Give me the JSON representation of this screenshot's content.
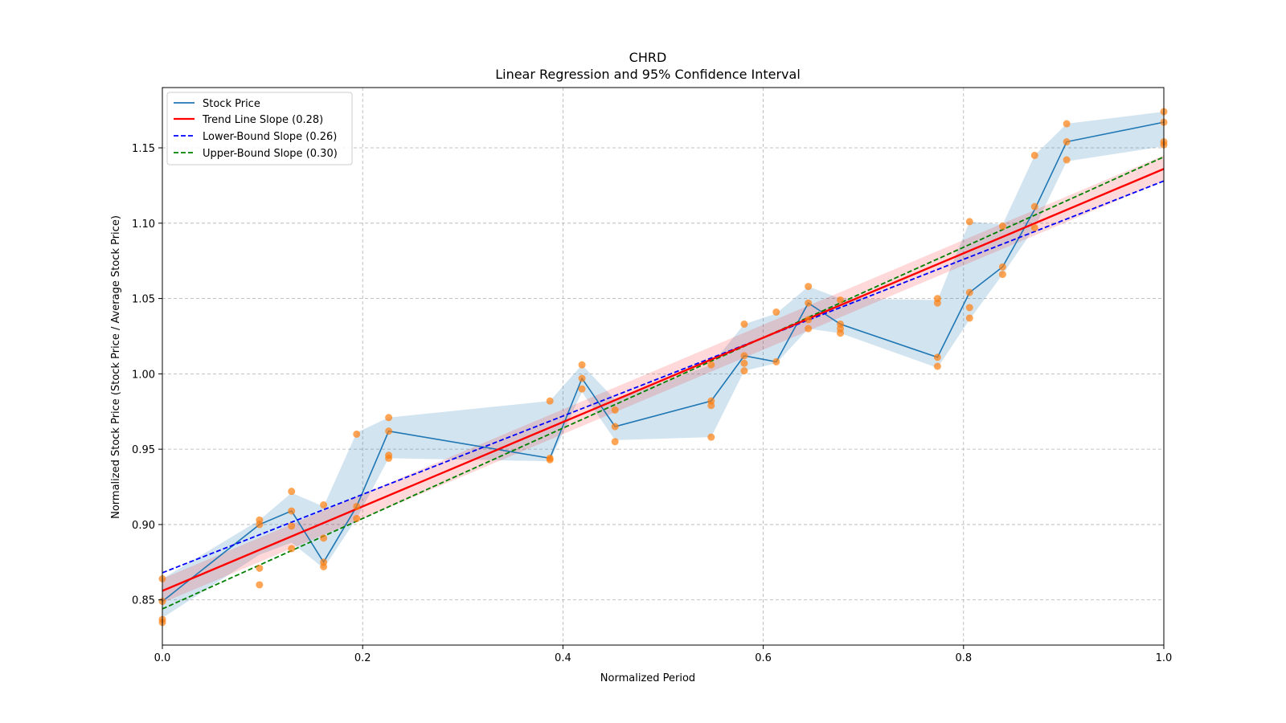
{
  "chart_data": {
    "type": "line",
    "title": "CHRD",
    "subtitle": "Linear Regression and 95% Confidence Interval",
    "xlabel": "Normalized Period",
    "ylabel": "Normalized Stock Price (Stock Price / Average Stock Price)",
    "xlim": [
      0,
      1
    ],
    "ylim": [
      0.82,
      1.19
    ],
    "xticks": [
      0.0,
      0.2,
      0.4,
      0.6,
      0.8,
      1.0
    ],
    "xtick_labels": [
      "0.0",
      "0.2",
      "0.4",
      "0.6",
      "0.8",
      "1.0"
    ],
    "yticks": [
      0.85,
      0.9,
      0.95,
      1.0,
      1.05,
      1.1,
      1.15
    ],
    "ytick_labels": [
      "0.85",
      "0.90",
      "0.95",
      "1.00",
      "1.05",
      "1.10",
      "1.15"
    ],
    "grid": true,
    "legend_position": "top-left",
    "legend": [
      {
        "label": "Stock Price",
        "color": "#1f77b4",
        "style": "solid"
      },
      {
        "label": "Trend Line Slope (0.28)",
        "color": "#ff0000",
        "style": "solid"
      },
      {
        "label": "Lower-Bound Slope (0.26)",
        "color": "#0000ff",
        "style": "dashed"
      },
      {
        "label": "Upper-Bound Slope (0.30)",
        "color": "#008000",
        "style": "dashed"
      }
    ],
    "stock_price": {
      "name": "Stock Price",
      "color": "#1f77b4",
      "x": [
        0.0,
        0.097,
        0.129,
        0.161,
        0.194,
        0.226,
        0.387,
        0.419,
        0.452,
        0.548,
        0.581,
        0.613,
        0.645,
        0.677,
        0.774,
        0.806,
        0.839,
        0.871,
        0.903,
        1.0
      ],
      "y": [
        0.849,
        0.9,
        0.909,
        0.875,
        0.912,
        0.962,
        0.944,
        0.997,
        0.965,
        0.982,
        1.012,
        1.008,
        1.047,
        1.033,
        1.011,
        1.054,
        1.071,
        1.109,
        1.154,
        1.167
      ],
      "band_low": [
        0.838,
        0.88,
        0.888,
        0.871,
        0.904,
        0.944,
        0.942,
        0.988,
        0.956,
        0.958,
        1.002,
        1.007,
        1.03,
        1.027,
        1.004,
        1.036,
        1.066,
        1.097,
        1.141,
        1.151
      ],
      "band_high": [
        0.864,
        0.903,
        0.921,
        0.912,
        0.961,
        0.971,
        0.982,
        1.006,
        0.983,
        1.006,
        1.033,
        1.04,
        1.058,
        1.05,
        1.049,
        1.101,
        1.099,
        1.145,
        1.166,
        1.174
      ]
    },
    "points": {
      "color": "#ff7f0e",
      "x": [
        0.0,
        0.0,
        0.0,
        0.0,
        0.097,
        0.097,
        0.097,
        0.097,
        0.129,
        0.129,
        0.129,
        0.129,
        0.161,
        0.161,
        0.161,
        0.161,
        0.194,
        0.194,
        0.194,
        0.226,
        0.226,
        0.226,
        0.226,
        0.387,
        0.387,
        0.387,
        0.419,
        0.419,
        0.419,
        0.452,
        0.452,
        0.452,
        0.548,
        0.548,
        0.548,
        0.548,
        0.581,
        0.581,
        0.581,
        0.581,
        0.613,
        0.613,
        0.645,
        0.645,
        0.645,
        0.645,
        0.677,
        0.677,
        0.677,
        0.677,
        0.774,
        0.774,
        0.774,
        0.774,
        0.806,
        0.806,
        0.806,
        0.806,
        0.839,
        0.839,
        0.839,
        0.871,
        0.871,
        0.871,
        0.903,
        0.903,
        0.903,
        1.0,
        1.0,
        1.0,
        1.0
      ],
      "y": [
        0.864,
        0.837,
        0.835,
        0.849,
        0.903,
        0.9,
        0.871,
        0.86,
        0.922,
        0.909,
        0.899,
        0.884,
        0.913,
        0.891,
        0.875,
        0.872,
        0.96,
        0.912,
        0.904,
        0.971,
        0.962,
        0.946,
        0.944,
        0.982,
        0.944,
        0.943,
        1.006,
        0.997,
        0.99,
        0.976,
        0.965,
        0.955,
        1.006,
        0.982,
        0.979,
        0.958,
        1.033,
        1.012,
        1.007,
        1.002,
        1.041,
        1.008,
        1.058,
        1.047,
        1.036,
        1.03,
        1.049,
        1.033,
        1.03,
        1.027,
        1.05,
        1.047,
        1.011,
        1.005,
        1.101,
        1.054,
        1.044,
        1.037,
        1.098,
        1.071,
        1.066,
        1.145,
        1.111,
        1.097,
        1.166,
        1.154,
        1.142,
        1.174,
        1.167,
        1.154,
        1.152
      ]
    },
    "trend_line": {
      "name": "Trend Line Slope (0.28)",
      "x": [
        0,
        1
      ],
      "y": [
        0.856,
        1.136
      ],
      "color": "#ff0000",
      "ci_low": [
        0.848,
        1.128
      ],
      "ci_high": [
        0.864,
        1.145
      ]
    },
    "lower_bound": {
      "name": "Lower-Bound Slope (0.26)",
      "x": [
        0,
        1
      ],
      "y": [
        0.868,
        1.128
      ],
      "color": "#0000ff"
    },
    "upper_bound": {
      "name": "Upper-Bound Slope (0.30)",
      "x": [
        0,
        1
      ],
      "y": [
        0.844,
        1.144
      ],
      "color": "#008000"
    }
  }
}
